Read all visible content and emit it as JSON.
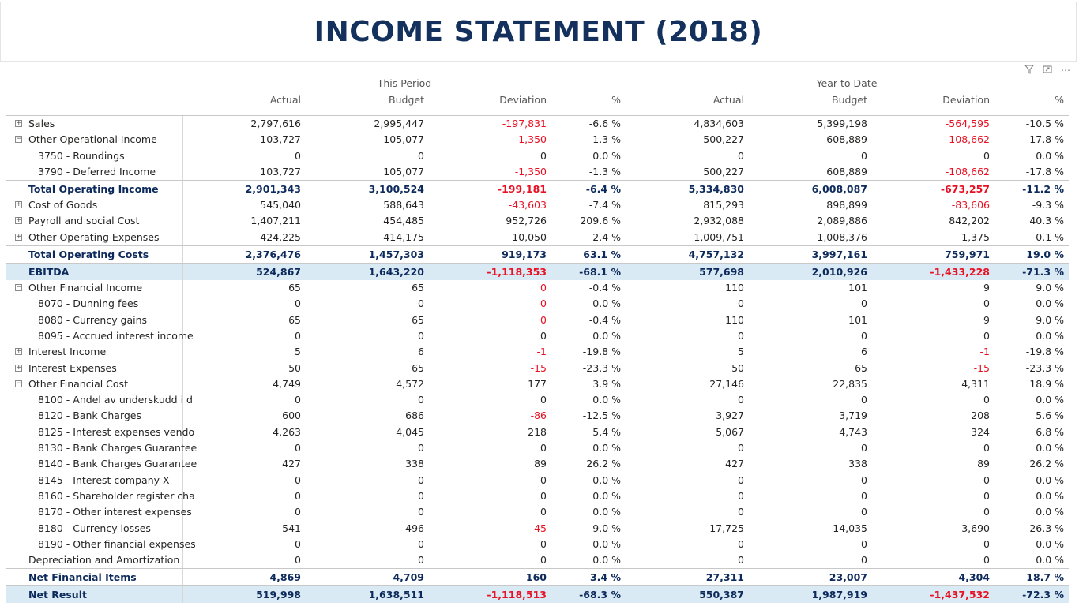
{
  "title": "INCOME STATEMENT (2018)",
  "header": {
    "group1": "This Period",
    "group2": "Year to Date",
    "columns": [
      "Actual",
      "Budget",
      "Deviation",
      "%",
      "Actual",
      "Budget",
      "Deviation",
      "%"
    ]
  },
  "rows": [
    {
      "label": "Sales",
      "type": "group",
      "exp": "+",
      "v": [
        "2,797,616",
        "2,995,447",
        "-197,831",
        "-6.6 %",
        "4,834,603",
        "5,399,198",
        "-564,595",
        "-10.5 %"
      ]
    },
    {
      "label": "Other Operational Income",
      "type": "group",
      "exp": "−",
      "v": [
        "103,727",
        "105,077",
        "-1,350",
        "-1.3 %",
        "500,227",
        "608,889",
        "-108,662",
        "-17.8 %"
      ]
    },
    {
      "label": "3750 - Roundings",
      "type": "child",
      "v": [
        "0",
        "0",
        "0",
        "0.0 %",
        "0",
        "0",
        "0",
        "0.0 %"
      ]
    },
    {
      "label": "3790 - Deferred Income",
      "type": "child",
      "v": [
        "103,727",
        "105,077",
        "-1,350",
        "-1.3 %",
        "500,227",
        "608,889",
        "-108,662",
        "-17.8 %"
      ]
    },
    {
      "label": "Total Operating Income",
      "type": "total",
      "v": [
        "2,901,343",
        "3,100,524",
        "-199,181",
        "-6.4 %",
        "5,334,830",
        "6,008,087",
        "-673,257",
        "-11.2 %"
      ]
    },
    {
      "label": "Cost of Goods",
      "type": "group",
      "exp": "+",
      "v": [
        "545,040",
        "588,643",
        "-43,603",
        "-7.4 %",
        "815,293",
        "898,899",
        "-83,606",
        "-9.3 %"
      ]
    },
    {
      "label": "Payroll and social Cost",
      "type": "group",
      "exp": "+",
      "v": [
        "1,407,211",
        "454,485",
        "952,726",
        "209.6 %",
        "2,932,088",
        "2,089,886",
        "842,202",
        "40.3 %"
      ]
    },
    {
      "label": "Other Operating Expenses",
      "type": "group",
      "exp": "+",
      "v": [
        "424,225",
        "414,175",
        "10,050",
        "2.4 %",
        "1,009,751",
        "1,008,376",
        "1,375",
        "0.1 %"
      ]
    },
    {
      "label": "Total Operating Costs",
      "type": "total",
      "v": [
        "2,376,476",
        "1,457,303",
        "919,173",
        "63.1 %",
        "4,757,132",
        "3,997,161",
        "759,971",
        "19.0 %"
      ]
    },
    {
      "label": "EBITDA",
      "type": "highlight",
      "v": [
        "524,867",
        "1,643,220",
        "-1,118,353",
        "-68.1 %",
        "577,698",
        "2,010,926",
        "-1,433,228",
        "-71.3 %"
      ]
    },
    {
      "label": "Other Financial Income",
      "type": "group",
      "exp": "−",
      "v": [
        "65",
        "65",
        "0",
        "-0.4 %",
        "110",
        "101",
        "9",
        "9.0 %"
      ],
      "negFlag": [
        false,
        false,
        true,
        false,
        false,
        false,
        false,
        false
      ]
    },
    {
      "label": "8070 - Dunning fees",
      "type": "child",
      "v": [
        "0",
        "0",
        "0",
        "0.0 %",
        "0",
        "0",
        "0",
        "0.0 %"
      ],
      "negFlag": [
        false,
        false,
        true,
        false,
        false,
        false,
        false,
        false
      ]
    },
    {
      "label": "8080 - Currency gains",
      "type": "child",
      "v": [
        "65",
        "65",
        "0",
        "-0.4 %",
        "110",
        "101",
        "9",
        "9.0 %"
      ],
      "negFlag": [
        false,
        false,
        true,
        false,
        false,
        false,
        false,
        false
      ]
    },
    {
      "label": "8095 - Accrued interest income",
      "type": "child",
      "v": [
        "0",
        "0",
        "0",
        "0.0 %",
        "0",
        "0",
        "0",
        "0.0 %"
      ]
    },
    {
      "label": "Interest Income",
      "type": "group",
      "exp": "+",
      "v": [
        "5",
        "6",
        "-1",
        "-19.8 %",
        "5",
        "6",
        "-1",
        "-19.8 %"
      ]
    },
    {
      "label": "Interest Expenses",
      "type": "group",
      "exp": "+",
      "v": [
        "50",
        "65",
        "-15",
        "-23.3 %",
        "50",
        "65",
        "-15",
        "-23.3 %"
      ]
    },
    {
      "label": "Other Financial Cost",
      "type": "group",
      "exp": "−",
      "v": [
        "4,749",
        "4,572",
        "177",
        "3.9 %",
        "27,146",
        "22,835",
        "4,311",
        "18.9 %"
      ]
    },
    {
      "label": "8100 - Andel av underskudd i d",
      "type": "child",
      "v": [
        "0",
        "0",
        "0",
        "0.0 %",
        "0",
        "0",
        "0",
        "0.0 %"
      ]
    },
    {
      "label": "8120 - Bank Charges",
      "type": "child",
      "v": [
        "600",
        "686",
        "-86",
        "-12.5 %",
        "3,927",
        "3,719",
        "208",
        "5.6 %"
      ]
    },
    {
      "label": "8125 - Interest expenses vendo",
      "type": "child",
      "v": [
        "4,263",
        "4,045",
        "218",
        "5.4 %",
        "5,067",
        "4,743",
        "324",
        "6.8 %"
      ]
    },
    {
      "label": "8130 - Bank Charges Guarantee",
      "type": "child",
      "v": [
        "0",
        "0",
        "0",
        "0.0 %",
        "0",
        "0",
        "0",
        "0.0 %"
      ]
    },
    {
      "label": "8140 - Bank Charges Guarantee",
      "type": "child",
      "v": [
        "427",
        "338",
        "89",
        "26.2 %",
        "427",
        "338",
        "89",
        "26.2 %"
      ]
    },
    {
      "label": "8145 - Interest company X",
      "type": "child",
      "v": [
        "0",
        "0",
        "0",
        "0.0 %",
        "0",
        "0",
        "0",
        "0.0 %"
      ]
    },
    {
      "label": "8160 - Shareholder register cha",
      "type": "child",
      "v": [
        "0",
        "0",
        "0",
        "0.0 %",
        "0",
        "0",
        "0",
        "0.0 %"
      ]
    },
    {
      "label": "8170 - Other interest expenses",
      "type": "child",
      "v": [
        "0",
        "0",
        "0",
        "0.0 %",
        "0",
        "0",
        "0",
        "0.0 %"
      ]
    },
    {
      "label": "8180 - Currency losses",
      "type": "child",
      "v": [
        "-541",
        "-496",
        "-45",
        "9.0 %",
        "17,725",
        "14,035",
        "3,690",
        "26.3 %"
      ]
    },
    {
      "label": "8190 - Other financial expenses",
      "type": "child",
      "v": [
        "0",
        "0",
        "0",
        "0.0 %",
        "0",
        "0",
        "0",
        "0.0 %"
      ]
    },
    {
      "label": "Depreciation and Amortization",
      "type": "plain",
      "v": [
        "0",
        "0",
        "0",
        "0.0 %",
        "0",
        "0",
        "0",
        "0.0 %"
      ]
    },
    {
      "label": "Net Financial Items",
      "type": "total",
      "v": [
        "4,869",
        "4,709",
        "160",
        "3.4 %",
        "27,311",
        "23,007",
        "4,304",
        "18.7 %"
      ]
    },
    {
      "label": "Net Result",
      "type": "highlight",
      "v": [
        "519,998",
        "1,638,511",
        "-1,118,513",
        "-68.3 %",
        "550,387",
        "1,987,919",
        "-1,437,532",
        "-72.3 %"
      ]
    }
  ],
  "colors": {
    "negative": "#e81123",
    "title": "#13315c",
    "highlight_bg": "#d9eaf4"
  },
  "icons": [
    "filter-icon",
    "focus-mode-icon",
    "more-options-icon"
  ]
}
